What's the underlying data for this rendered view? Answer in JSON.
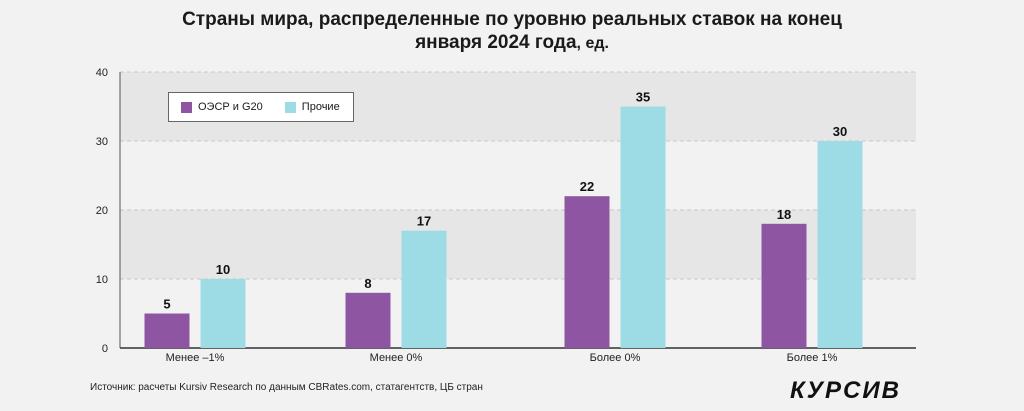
{
  "title": {
    "main": "Страны мира, распределенные по уровню реальных ставок на конец",
    "main_line2": "января 2024 года",
    "unit": ", ед."
  },
  "colors": {
    "oecd": "#8e55a3",
    "other": "#9edce5",
    "band": "#e6e6e6",
    "grid": "#c8c8c8"
  },
  "chart_data": {
    "type": "bar",
    "title": "Страны мира, распределенные по уровню реальных ставок на конец января 2024 года, ед.",
    "categories": [
      "Менее –1%",
      "Менее 0%",
      "Более 0%",
      "Более 1%"
    ],
    "series": [
      {
        "name": "ОЭСР и G20",
        "values": [
          5,
          8,
          22,
          18
        ]
      },
      {
        "name": "Прочие",
        "values": [
          10,
          17,
          35,
          30
        ]
      }
    ],
    "ylim": [
      0,
      40
    ],
    "yticks": [
      0,
      10,
      20,
      30,
      40
    ],
    "xlabel": "",
    "ylabel": "",
    "legend_position": "top-left",
    "grid": true
  },
  "source": "Источник: расчеты Kursiv Research по данным CBRates.com, статагентств, ЦБ стран",
  "logo": "КУРСИВ"
}
